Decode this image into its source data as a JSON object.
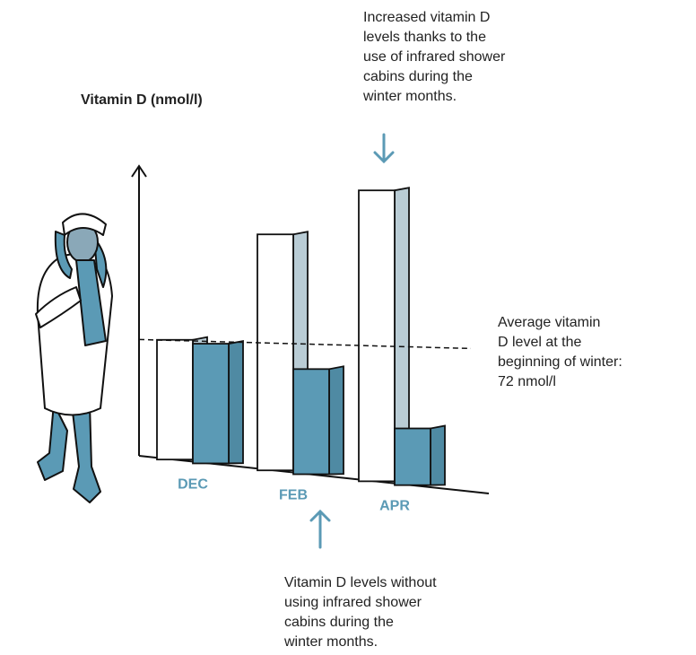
{
  "chart_data": {
    "type": "bar3d",
    "y_label": "Vitamin D (nmol/l)",
    "categories": [
      "DEC",
      "FEB",
      "APR"
    ],
    "series": [
      {
        "color": "#ffffff",
        "side_color": "#b9ccd5",
        "values": [
          73,
          145,
          179
        ]
      },
      {
        "color": "#5b9ab5",
        "side_color": "#4f8aa3",
        "values": [
          73,
          64,
          34
        ]
      }
    ],
    "ylim": [
      0,
      200
    ],
    "reference_line": 72,
    "annotations": {
      "top": [
        "Increased vitamin D",
        "levels thanks to the",
        "use of infrared shower",
        "cabins during the",
        "winter months."
      ],
      "right": [
        "Average vitamin",
        "D level at the",
        "beginning of winter:",
        "72 nmol/l"
      ],
      "bottom": [
        "Vitamin D levels without",
        "using infrared shower",
        "cabins during the",
        "winter months."
      ]
    }
  }
}
